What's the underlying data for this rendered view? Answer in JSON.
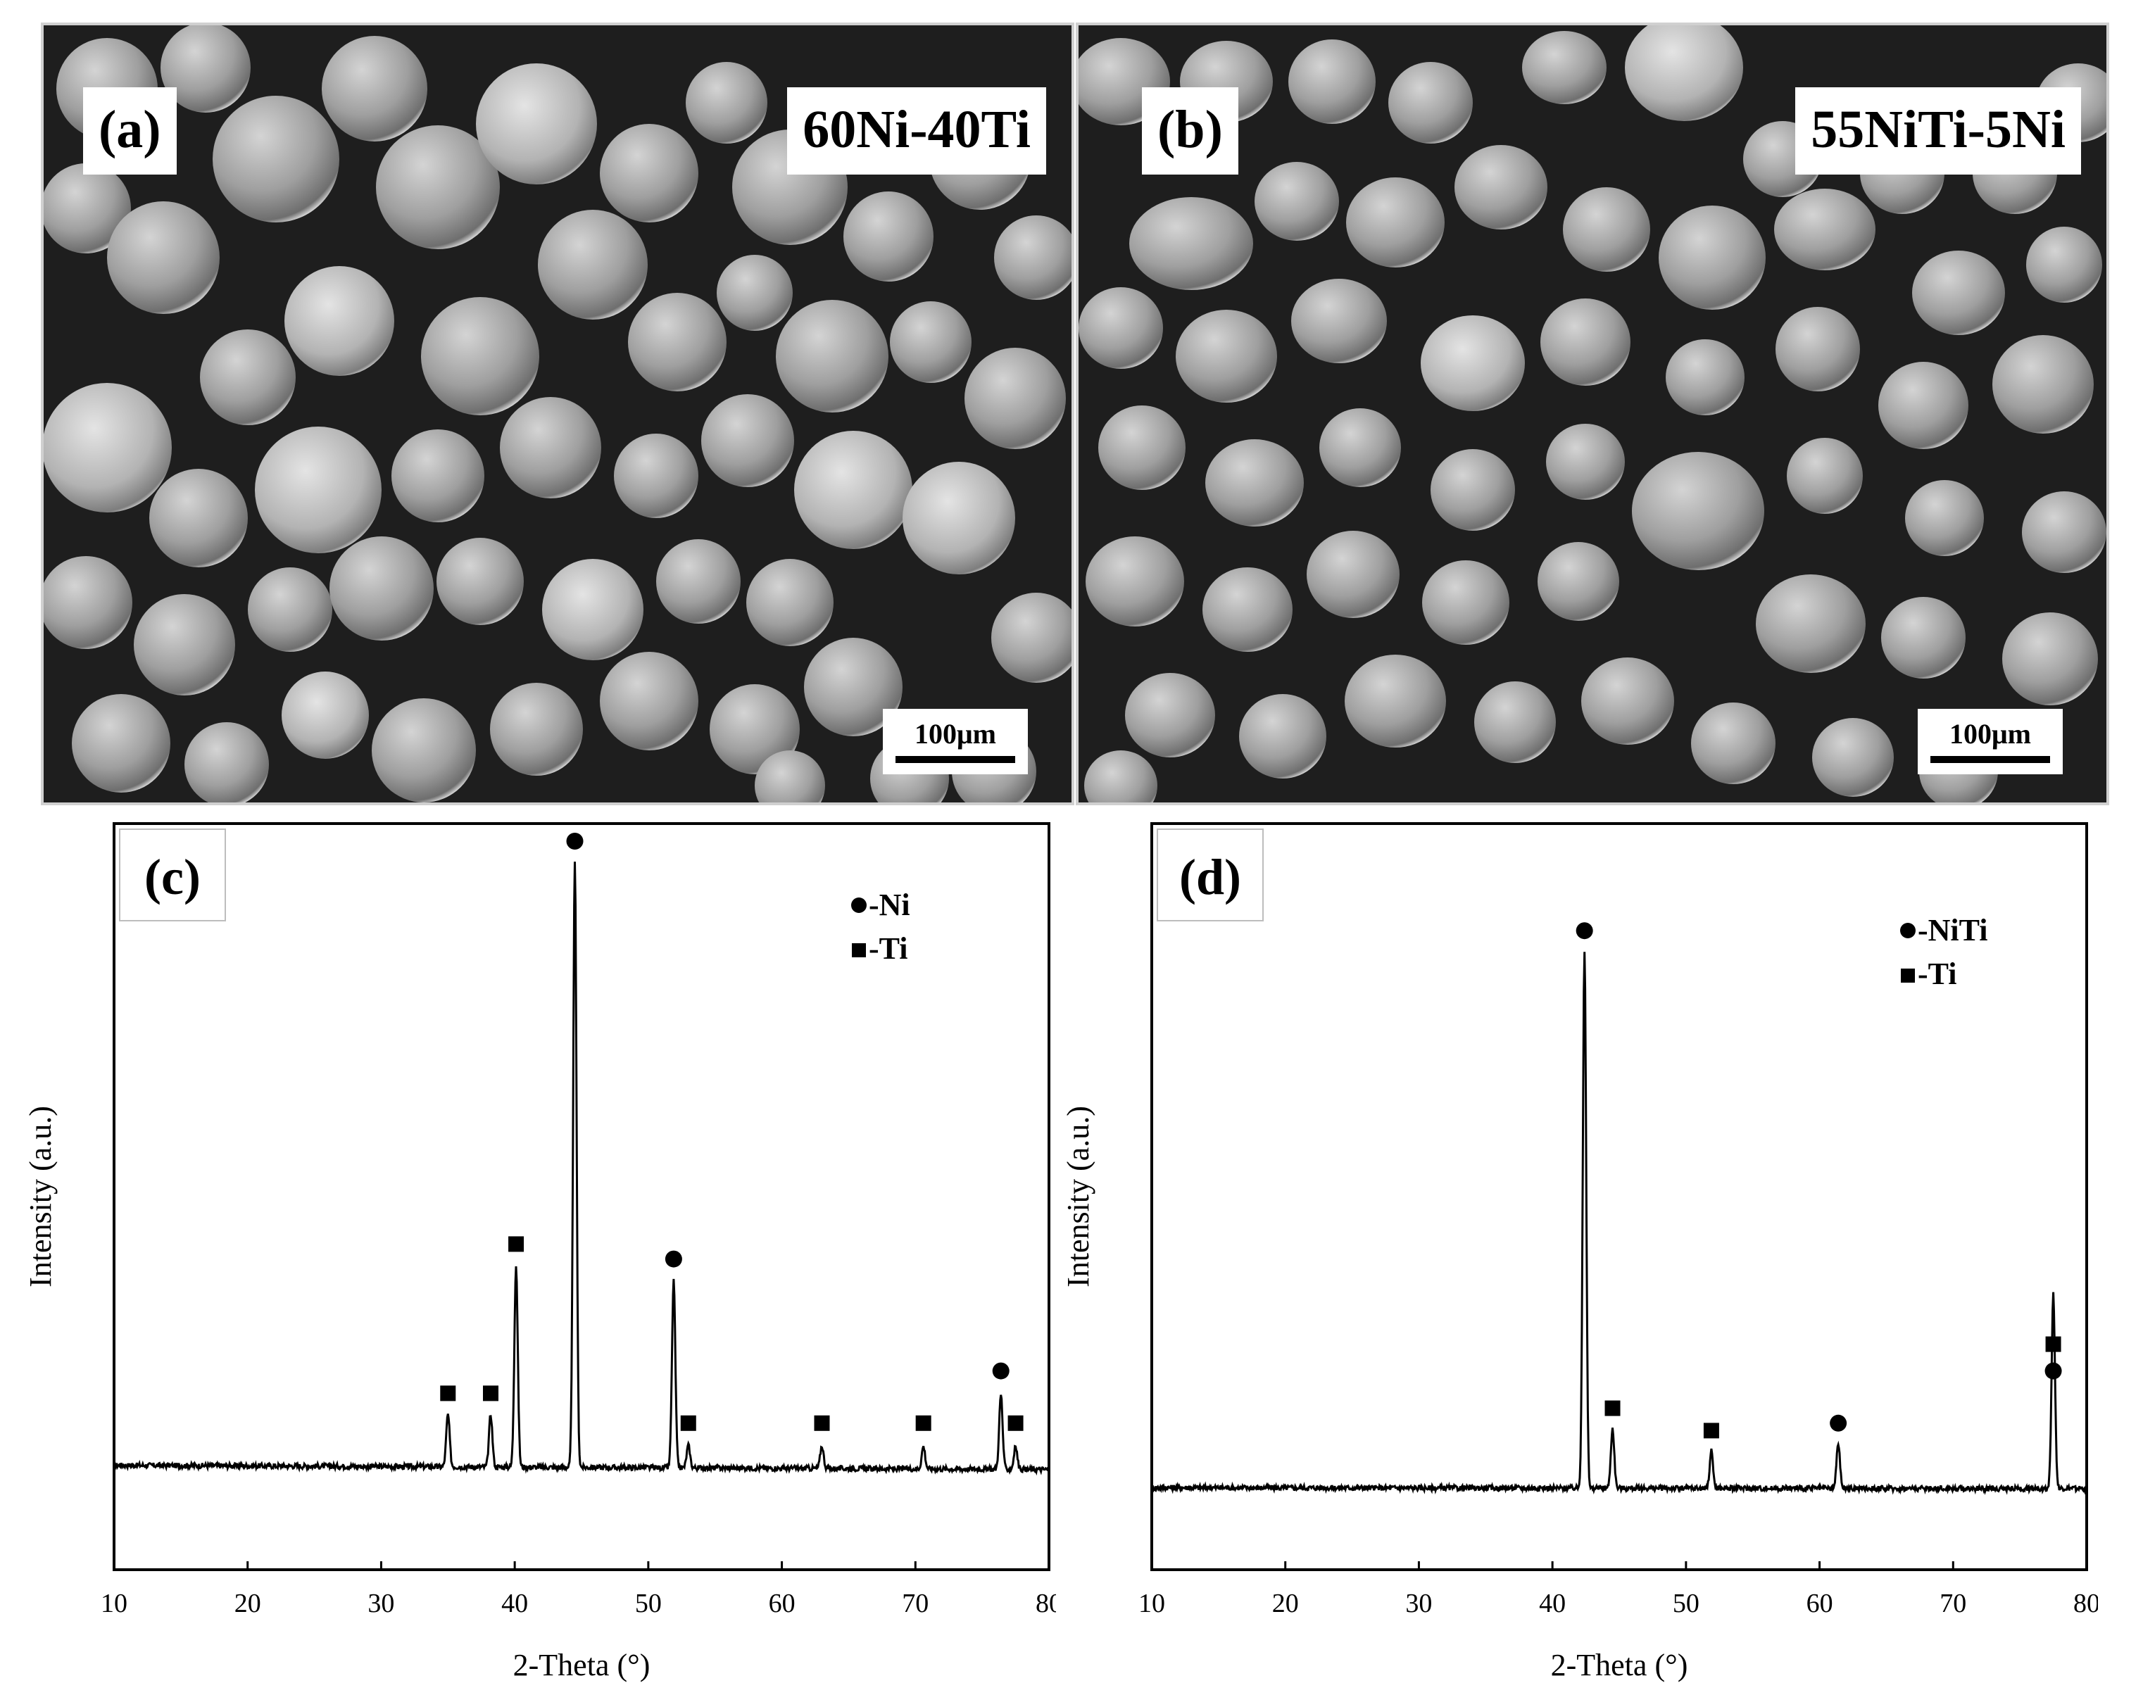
{
  "panels": {
    "a": {
      "label": "(a)",
      "composition": "60Ni-40Ti",
      "scale": "100μm"
    },
    "b": {
      "label": "(b)",
      "composition": "55NiTi-5Ni",
      "scale": "100μm"
    }
  },
  "chart_data": [
    {
      "type": "line",
      "panel_label": "(c)",
      "xlabel": "2-Theta (°)",
      "ylabel": "Intensity (a.u.)",
      "xlim": [
        10,
        80
      ],
      "ylim": [
        0,
        100
      ],
      "xticks": [
        10,
        20,
        30,
        40,
        50,
        60,
        70,
        80
      ],
      "yticks_shown": false,
      "grid": false,
      "legend_position": "top-right",
      "legend": [
        {
          "marker": "circle",
          "label": "-Ni"
        },
        {
          "marker": "square",
          "label": "-Ti"
        }
      ],
      "baseline": 14,
      "peaks": [
        {
          "x": 35.0,
          "y": 21,
          "phase": "Ti"
        },
        {
          "x": 38.2,
          "y": 21,
          "phase": "Ti"
        },
        {
          "x": 40.1,
          "y": 41,
          "phase": "Ti"
        },
        {
          "x": 44.5,
          "y": 95,
          "phase": "Ni"
        },
        {
          "x": 51.9,
          "y": 39,
          "phase": "Ni"
        },
        {
          "x": 53.0,
          "y": 17,
          "phase": "Ti"
        },
        {
          "x": 63.0,
          "y": 17,
          "phase": "Ti"
        },
        {
          "x": 70.6,
          "y": 17,
          "phase": "Ti"
        },
        {
          "x": 76.4,
          "y": 24,
          "phase": "Ni"
        },
        {
          "x": 77.5,
          "y": 17,
          "phase": "Ti"
        }
      ]
    },
    {
      "type": "line",
      "panel_label": "(d)",
      "xlabel": "2-Theta (°)",
      "ylabel": "Intensity (a.u.)",
      "xlim": [
        10,
        80
      ],
      "ylim": [
        0,
        100
      ],
      "xticks": [
        10,
        20,
        30,
        40,
        50,
        60,
        70,
        80
      ],
      "yticks_shown": false,
      "grid": false,
      "legend_position": "top-right",
      "legend": [
        {
          "marker": "circle",
          "label": "-NiTi"
        },
        {
          "marker": "square",
          "label": "-Ti"
        }
      ],
      "baseline": 11,
      "peaks": [
        {
          "x": 42.4,
          "y": 83,
          "phase": "NiTi"
        },
        {
          "x": 44.5,
          "y": 19,
          "phase": "Ti"
        },
        {
          "x": 51.9,
          "y": 16,
          "phase": "Ti"
        },
        {
          "x": 61.4,
          "y": 17,
          "phase": "NiTi"
        },
        {
          "x": 77.5,
          "y": 24,
          "phase": "NiTi"
        },
        {
          "x": 77.5,
          "y": 24,
          "phase": "Ti"
        }
      ]
    }
  ]
}
